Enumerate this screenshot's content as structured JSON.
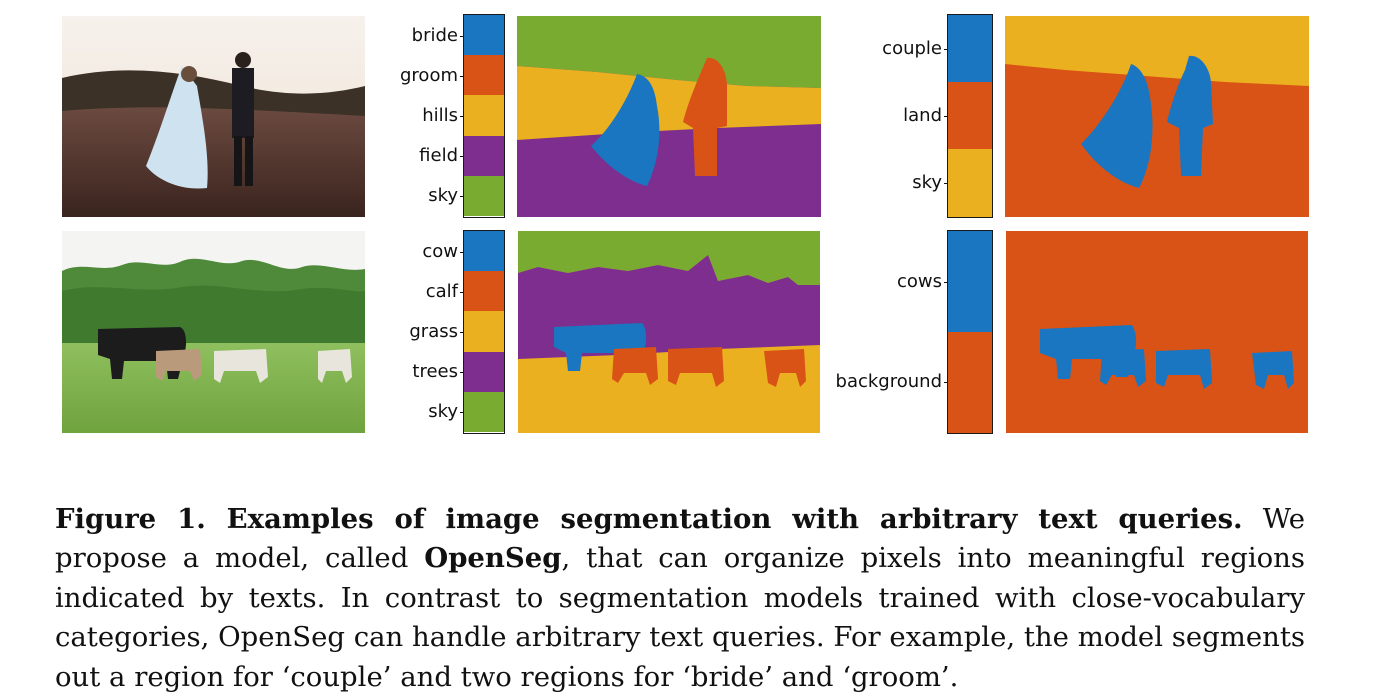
{
  "colors": {
    "blue": "#1a76c0",
    "orange": "#d95316",
    "yellow": "#ebb01f",
    "purple": "#7d2e8e",
    "green": "#78ab30"
  },
  "rows": [
    {
      "photo_icon": "wedding-couple-photo",
      "fine": {
        "labels": [
          "bride",
          "groom",
          "hills",
          "field",
          "sky"
        ],
        "label_colors": [
          "blue",
          "orange",
          "yellow",
          "purple",
          "green"
        ]
      },
      "coarse": {
        "labels": [
          "couple",
          "land",
          "sky"
        ],
        "label_colors": [
          "blue",
          "orange",
          "yellow"
        ]
      }
    },
    {
      "photo_icon": "cows-pasture-photo",
      "fine": {
        "labels": [
          "cow",
          "calf",
          "grass",
          "trees",
          "sky"
        ],
        "label_colors": [
          "blue",
          "orange",
          "yellow",
          "purple",
          "green"
        ]
      },
      "coarse": {
        "labels": [
          "cows",
          "background"
        ],
        "label_colors": [
          "blue",
          "orange"
        ]
      }
    }
  ],
  "caption": {
    "lead": "Figure 1. Examples of image segmentation with arbitrary text queries.",
    "part1": " We propose a model, called ",
    "model_name": "OpenSeg",
    "part2": ", that can organize pixels into meaningful regions indicated by texts. In contrast to segmentation models trained with close-vocabulary categories, OpenSeg can handle arbitrary text queries. For example, the model segments out a region for ‘couple’ and two regions for ‘bride’ and ‘groom’."
  }
}
